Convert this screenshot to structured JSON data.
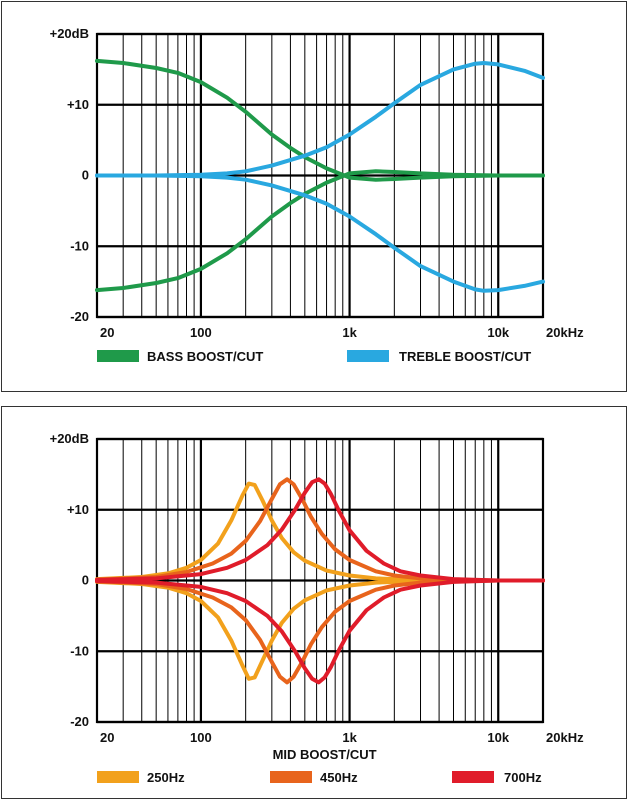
{
  "chart_data": [
    {
      "type": "line",
      "title": "",
      "x_scale": "log",
      "xlim": [
        20,
        20000
      ],
      "ylim": [
        -20,
        20
      ],
      "x_tick_labels": [
        {
          "value": 20,
          "label": "20"
        },
        {
          "value": 100,
          "label": "100"
        },
        {
          "value": 1000,
          "label": "1k"
        },
        {
          "value": 10000,
          "label": "10k"
        },
        {
          "value": 20000,
          "label": "20kHz"
        }
      ],
      "y_tick_labels": [
        {
          "value": 20,
          "label": "+20dB"
        },
        {
          "value": 10,
          "label": "+10"
        },
        {
          "value": 0,
          "label": "0"
        },
        {
          "value": -10,
          "label": "-10"
        },
        {
          "value": -20,
          "label": "-20"
        }
      ],
      "grid": true,
      "legend": [
        {
          "label": "BASS BOOST/CUT",
          "color": "#1f9a4a"
        },
        {
          "label": "TREBLE BOOST/CUT",
          "color": "#29a8e0"
        }
      ],
      "series": [
        {
          "name": "BASS BOOST/CUT",
          "color": "#1f9a4a",
          "x": [
            20,
            30,
            50,
            70,
            100,
            150,
            200,
            300,
            400,
            500,
            700,
            1000,
            1500,
            2000,
            3000,
            5000,
            10000,
            20000
          ],
          "y": [
            16.2,
            15.9,
            15.2,
            14.5,
            13.2,
            11.0,
            9.0,
            5.8,
            3.9,
            2.6,
            1.0,
            -0.3,
            -0.6,
            -0.5,
            -0.3,
            -0.1,
            0,
            0
          ]
        },
        {
          "name": "BASS BOOST/CUT",
          "color": "#1f9a4a",
          "x": [
            20,
            30,
            50,
            70,
            100,
            150,
            200,
            300,
            400,
            500,
            700,
            1000,
            1500,
            2000,
            3000,
            5000,
            10000,
            20000
          ],
          "y": [
            -16.2,
            -15.9,
            -15.2,
            -14.5,
            -13.2,
            -11.0,
            -9.0,
            -5.8,
            -3.9,
            -2.6,
            -1.0,
            0.3,
            0.6,
            0.5,
            0.3,
            0.1,
            0,
            0
          ]
        },
        {
          "name": "TREBLE BOOST/CUT",
          "color": "#29a8e0",
          "x": [
            20,
            50,
            100,
            150,
            200,
            300,
            500,
            700,
            1000,
            1500,
            2000,
            3000,
            5000,
            7000,
            8000,
            10000,
            15000,
            20000
          ],
          "y": [
            0,
            0,
            0.1,
            0.3,
            0.6,
            1.4,
            2.8,
            4.0,
            5.8,
            8.3,
            10.2,
            12.8,
            15.0,
            15.8,
            15.9,
            15.7,
            14.8,
            13.8
          ]
        },
        {
          "name": "TREBLE BOOST/CUT",
          "color": "#29a8e0",
          "x": [
            20,
            50,
            100,
            150,
            200,
            300,
            500,
            700,
            1000,
            1500,
            2000,
            3000,
            5000,
            7000,
            8000,
            10000,
            15000,
            20000
          ],
          "y": [
            0,
            0,
            -0.1,
            -0.3,
            -0.6,
            -1.4,
            -2.8,
            -4.0,
            -5.8,
            -8.3,
            -10.2,
            -12.8,
            -15.0,
            -16.1,
            -16.3,
            -16.2,
            -15.6,
            -15.0
          ]
        }
      ]
    },
    {
      "type": "line",
      "title": "",
      "xlabel": "MID BOOST/CUT",
      "x_scale": "log",
      "xlim": [
        20,
        20000
      ],
      "ylim": [
        -20,
        20
      ],
      "x_tick_labels": [
        {
          "value": 20,
          "label": "20"
        },
        {
          "value": 100,
          "label": "100"
        },
        {
          "value": 1000,
          "label": "1k"
        },
        {
          "value": 10000,
          "label": "10k"
        },
        {
          "value": 20000,
          "label": "20kHz"
        }
      ],
      "y_tick_labels": [
        {
          "value": 20,
          "label": "+20dB"
        },
        {
          "value": 10,
          "label": "+10"
        },
        {
          "value": 0,
          "label": "0"
        },
        {
          "value": -10,
          "label": "-10"
        },
        {
          "value": -20,
          "label": "-20"
        }
      ],
      "grid": true,
      "legend": [
        {
          "label": "250Hz",
          "color": "#f2a11c"
        },
        {
          "label": "450Hz",
          "color": "#e8641c"
        },
        {
          "label": "700Hz",
          "color": "#e01c2a"
        }
      ],
      "series": [
        {
          "name": "250Hz",
          "color": "#f2a11c",
          "x": [
            20,
            40,
            60,
            80,
            100,
            130,
            160,
            190,
            210,
            230,
            260,
            300,
            350,
            420,
            500,
            700,
            1000,
            1500,
            2000,
            3000,
            5000,
            10000,
            20000
          ],
          "y": [
            0.2,
            0.5,
            1.0,
            1.8,
            2.9,
            5.2,
            8.5,
            12.0,
            13.7,
            13.5,
            11.3,
            8.5,
            6.0,
            4.0,
            2.8,
            1.4,
            0.7,
            0.3,
            0.2,
            0.1,
            0,
            0,
            0
          ]
        },
        {
          "name": "250Hz",
          "color": "#f2a11c",
          "x": [
            20,
            40,
            60,
            80,
            100,
            130,
            160,
            190,
            210,
            230,
            260,
            300,
            350,
            420,
            500,
            700,
            1000,
            1500,
            2000,
            3000,
            5000,
            10000,
            20000
          ],
          "y": [
            -0.2,
            -0.5,
            -1.0,
            -1.8,
            -2.9,
            -5.2,
            -8.5,
            -12.0,
            -13.9,
            -13.7,
            -11.3,
            -8.5,
            -6.0,
            -4.0,
            -2.8,
            -1.4,
            -0.7,
            -0.3,
            -0.2,
            -0.1,
            0,
            0,
            0
          ]
        },
        {
          "name": "450Hz",
          "color": "#e8641c",
          "x": [
            20,
            50,
            80,
            120,
            160,
            200,
            250,
            300,
            340,
            380,
            420,
            480,
            550,
            650,
            800,
            1000,
            1500,
            2000,
            3000,
            5000,
            10000,
            20000
          ],
          "y": [
            0.1,
            0.5,
            1.2,
            2.4,
            3.8,
            5.6,
            8.4,
            11.5,
            13.6,
            14.3,
            13.6,
            11.5,
            9.0,
            6.6,
            4.4,
            2.9,
            1.3,
            0.7,
            0.3,
            0.1,
            0,
            0
          ]
        },
        {
          "name": "450Hz",
          "color": "#e8641c",
          "x": [
            20,
            50,
            80,
            120,
            160,
            200,
            250,
            300,
            340,
            380,
            420,
            480,
            550,
            650,
            800,
            1000,
            1500,
            2000,
            3000,
            5000,
            10000,
            20000
          ],
          "y": [
            -0.1,
            -0.5,
            -1.2,
            -2.4,
            -3.8,
            -5.6,
            -8.4,
            -11.5,
            -13.6,
            -14.4,
            -13.6,
            -11.5,
            -9.0,
            -6.6,
            -4.4,
            -2.9,
            -1.3,
            -0.7,
            -0.3,
            -0.1,
            0,
            0
          ]
        },
        {
          "name": "700Hz",
          "color": "#e01c2a",
          "x": [
            20,
            50,
            100,
            150,
            200,
            280,
            350,
            430,
            500,
            560,
            620,
            680,
            750,
            850,
            1000,
            1300,
            1700,
            2200,
            3000,
            5000,
            10000,
            20000
          ],
          "y": [
            0.1,
            0.3,
            0.9,
            1.8,
            2.9,
            5.0,
            7.2,
            10.0,
            12.4,
            13.9,
            14.3,
            13.7,
            12.2,
            9.8,
            7.1,
            4.2,
            2.4,
            1.3,
            0.7,
            0.2,
            0,
            0
          ]
        },
        {
          "name": "700Hz",
          "color": "#e01c2a",
          "x": [
            20,
            50,
            100,
            150,
            200,
            280,
            350,
            430,
            500,
            560,
            620,
            680,
            750,
            850,
            1000,
            1300,
            1700,
            2200,
            3000,
            5000,
            10000,
            20000
          ],
          "y": [
            -0.1,
            -0.3,
            -0.9,
            -1.8,
            -2.9,
            -5.0,
            -7.2,
            -10.0,
            -12.4,
            -13.9,
            -14.4,
            -13.7,
            -12.2,
            -9.8,
            -7.1,
            -4.2,
            -2.4,
            -1.3,
            -0.7,
            -0.2,
            0,
            0
          ]
        }
      ]
    }
  ]
}
